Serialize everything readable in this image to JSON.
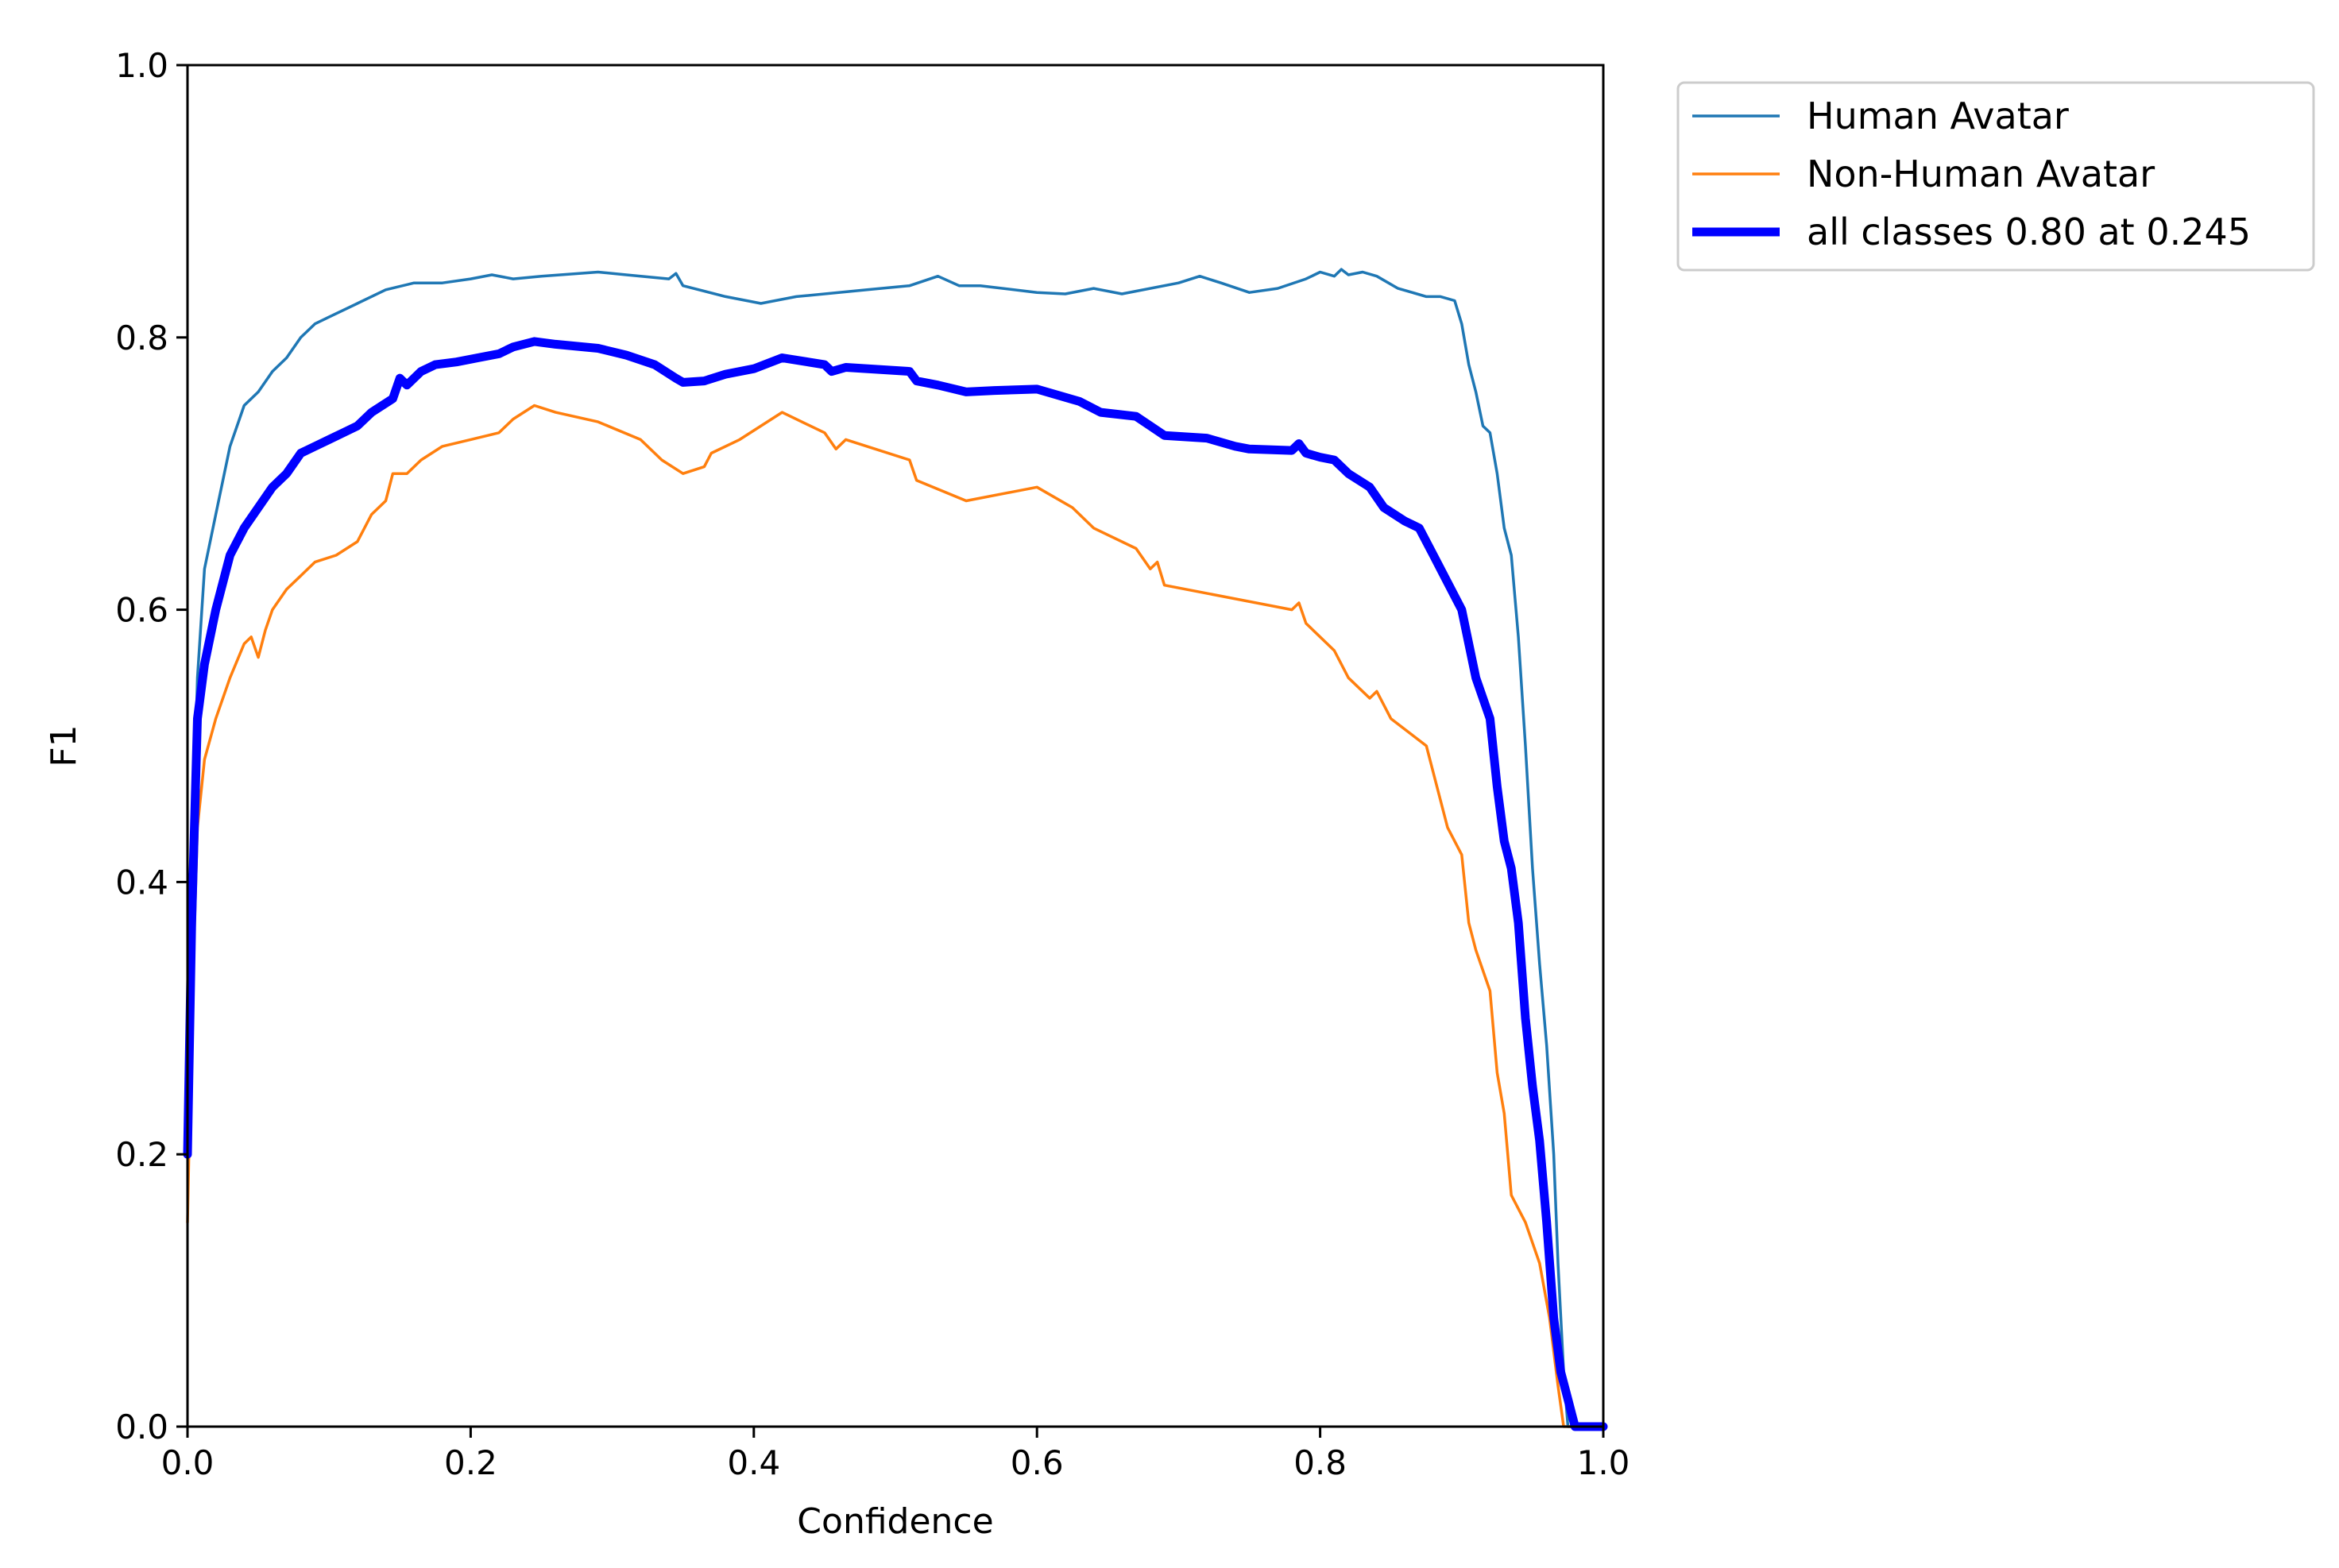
{
  "chart_data": {
    "type": "line",
    "title": "",
    "xlabel": "Confidence",
    "ylabel": "F1",
    "xlim": [
      0.0,
      1.0
    ],
    "ylim": [
      0.0,
      1.0
    ],
    "xticks": [
      "0.0",
      "0.2",
      "0.4",
      "0.6",
      "0.8",
      "1.0"
    ],
    "yticks": [
      "0.0",
      "0.2",
      "0.4",
      "0.6",
      "0.8",
      "1.0"
    ],
    "grid": false,
    "legend_position": "outside-top-right",
    "series": [
      {
        "name": "Human Avatar",
        "color": "#1f77b4",
        "points": [
          [
            0.0,
            0.2
          ],
          [
            0.003,
            0.4
          ],
          [
            0.007,
            0.55
          ],
          [
            0.012,
            0.63
          ],
          [
            0.02,
            0.67
          ],
          [
            0.03,
            0.72
          ],
          [
            0.04,
            0.75
          ],
          [
            0.05,
            0.76
          ],
          [
            0.06,
            0.775
          ],
          [
            0.07,
            0.785
          ],
          [
            0.08,
            0.8
          ],
          [
            0.09,
            0.81
          ],
          [
            0.1,
            0.815
          ],
          [
            0.12,
            0.825
          ],
          [
            0.14,
            0.835
          ],
          [
            0.16,
            0.84
          ],
          [
            0.18,
            0.84
          ],
          [
            0.2,
            0.843
          ],
          [
            0.215,
            0.846
          ],
          [
            0.23,
            0.843
          ],
          [
            0.25,
            0.845
          ],
          [
            0.29,
            0.848
          ],
          [
            0.31,
            0.846
          ],
          [
            0.34,
            0.843
          ],
          [
            0.345,
            0.847
          ],
          [
            0.35,
            0.838
          ],
          [
            0.38,
            0.83
          ],
          [
            0.405,
            0.825
          ],
          [
            0.43,
            0.83
          ],
          [
            0.48,
            0.835
          ],
          [
            0.51,
            0.838
          ],
          [
            0.53,
            0.845
          ],
          [
            0.545,
            0.838
          ],
          [
            0.56,
            0.838
          ],
          [
            0.6,
            0.833
          ],
          [
            0.62,
            0.832
          ],
          [
            0.64,
            0.836
          ],
          [
            0.66,
            0.832
          ],
          [
            0.7,
            0.84
          ],
          [
            0.715,
            0.845
          ],
          [
            0.73,
            0.84
          ],
          [
            0.75,
            0.833
          ],
          [
            0.77,
            0.836
          ],
          [
            0.79,
            0.843
          ],
          [
            0.8,
            0.848
          ],
          [
            0.81,
            0.845
          ],
          [
            0.815,
            0.85
          ],
          [
            0.82,
            0.846
          ],
          [
            0.83,
            0.848
          ],
          [
            0.84,
            0.845
          ],
          [
            0.855,
            0.836
          ],
          [
            0.865,
            0.833
          ],
          [
            0.875,
            0.83
          ],
          [
            0.885,
            0.83
          ],
          [
            0.895,
            0.827
          ],
          [
            0.9,
            0.81
          ],
          [
            0.905,
            0.78
          ],
          [
            0.91,
            0.76
          ],
          [
            0.915,
            0.735
          ],
          [
            0.92,
            0.73
          ],
          [
            0.925,
            0.7
          ],
          [
            0.93,
            0.66
          ],
          [
            0.935,
            0.64
          ],
          [
            0.94,
            0.58
          ],
          [
            0.945,
            0.5
          ],
          [
            0.95,
            0.41
          ],
          [
            0.955,
            0.34
          ],
          [
            0.96,
            0.28
          ],
          [
            0.965,
            0.2
          ],
          [
            0.968,
            0.12
          ],
          [
            0.972,
            0.04
          ],
          [
            0.975,
            0.0
          ],
          [
            1.0,
            0.0
          ]
        ]
      },
      {
        "name": "Non-Human Avatar",
        "color": "#ff7f0e",
        "points": [
          [
            0.0,
            0.15
          ],
          [
            0.003,
            0.3
          ],
          [
            0.007,
            0.44
          ],
          [
            0.012,
            0.49
          ],
          [
            0.02,
            0.52
          ],
          [
            0.03,
            0.55
          ],
          [
            0.04,
            0.575
          ],
          [
            0.045,
            0.58
          ],
          [
            0.05,
            0.565
          ],
          [
            0.055,
            0.585
          ],
          [
            0.06,
            0.6
          ],
          [
            0.07,
            0.615
          ],
          [
            0.08,
            0.625
          ],
          [
            0.09,
            0.635
          ],
          [
            0.105,
            0.64
          ],
          [
            0.12,
            0.65
          ],
          [
            0.13,
            0.67
          ],
          [
            0.14,
            0.68
          ],
          [
            0.145,
            0.7
          ],
          [
            0.155,
            0.7
          ],
          [
            0.165,
            0.71
          ],
          [
            0.18,
            0.72
          ],
          [
            0.2,
            0.725
          ],
          [
            0.22,
            0.73
          ],
          [
            0.23,
            0.74
          ],
          [
            0.245,
            0.75
          ],
          [
            0.26,
            0.745
          ],
          [
            0.29,
            0.738
          ],
          [
            0.32,
            0.725
          ],
          [
            0.335,
            0.71
          ],
          [
            0.35,
            0.7
          ],
          [
            0.365,
            0.705
          ],
          [
            0.37,
            0.715
          ],
          [
            0.39,
            0.725
          ],
          [
            0.42,
            0.745
          ],
          [
            0.45,
            0.73
          ],
          [
            0.458,
            0.718
          ],
          [
            0.465,
            0.725
          ],
          [
            0.51,
            0.71
          ],
          [
            0.515,
            0.695
          ],
          [
            0.55,
            0.68
          ],
          [
            0.6,
            0.69
          ],
          [
            0.625,
            0.675
          ],
          [
            0.64,
            0.66
          ],
          [
            0.67,
            0.645
          ],
          [
            0.68,
            0.63
          ],
          [
            0.685,
            0.635
          ],
          [
            0.69,
            0.618
          ],
          [
            0.78,
            0.6
          ],
          [
            0.785,
            0.605
          ],
          [
            0.79,
            0.59
          ],
          [
            0.81,
            0.57
          ],
          [
            0.82,
            0.55
          ],
          [
            0.835,
            0.535
          ],
          [
            0.84,
            0.54
          ],
          [
            0.85,
            0.52
          ],
          [
            0.875,
            0.5
          ],
          [
            0.88,
            0.48
          ],
          [
            0.885,
            0.46
          ],
          [
            0.89,
            0.44
          ],
          [
            0.9,
            0.42
          ],
          [
            0.905,
            0.37
          ],
          [
            0.91,
            0.35
          ],
          [
            0.92,
            0.32
          ],
          [
            0.925,
            0.26
          ],
          [
            0.93,
            0.23
          ],
          [
            0.935,
            0.17
          ],
          [
            0.945,
            0.15
          ],
          [
            0.955,
            0.12
          ],
          [
            0.962,
            0.08
          ],
          [
            0.968,
            0.03
          ],
          [
            0.972,
            0.0
          ],
          [
            1.0,
            0.0
          ]
        ]
      },
      {
        "name": "all classes 0.80 at 0.245",
        "color": "#0000ff",
        "bold": true,
        "points": [
          [
            0.0,
            0.2
          ],
          [
            0.003,
            0.37
          ],
          [
            0.007,
            0.52
          ],
          [
            0.012,
            0.56
          ],
          [
            0.02,
            0.6
          ],
          [
            0.03,
            0.64
          ],
          [
            0.04,
            0.66
          ],
          [
            0.05,
            0.675
          ],
          [
            0.06,
            0.69
          ],
          [
            0.07,
            0.7
          ],
          [
            0.08,
            0.715
          ],
          [
            0.09,
            0.72
          ],
          [
            0.1,
            0.725
          ],
          [
            0.11,
            0.73
          ],
          [
            0.12,
            0.735
          ],
          [
            0.13,
            0.745
          ],
          [
            0.145,
            0.755
          ],
          [
            0.15,
            0.77
          ],
          [
            0.155,
            0.765
          ],
          [
            0.165,
            0.775
          ],
          [
            0.175,
            0.78
          ],
          [
            0.19,
            0.782
          ],
          [
            0.205,
            0.785
          ],
          [
            0.22,
            0.788
          ],
          [
            0.23,
            0.793
          ],
          [
            0.245,
            0.797
          ],
          [
            0.26,
            0.795
          ],
          [
            0.29,
            0.792
          ],
          [
            0.31,
            0.787
          ],
          [
            0.33,
            0.78
          ],
          [
            0.345,
            0.77
          ],
          [
            0.35,
            0.767
          ],
          [
            0.365,
            0.768
          ],
          [
            0.38,
            0.773
          ],
          [
            0.4,
            0.777
          ],
          [
            0.42,
            0.785
          ],
          [
            0.45,
            0.78
          ],
          [
            0.455,
            0.775
          ],
          [
            0.465,
            0.778
          ],
          [
            0.51,
            0.775
          ],
          [
            0.515,
            0.768
          ],
          [
            0.53,
            0.765
          ],
          [
            0.55,
            0.76
          ],
          [
            0.57,
            0.761
          ],
          [
            0.6,
            0.762
          ],
          [
            0.63,
            0.753
          ],
          [
            0.645,
            0.745
          ],
          [
            0.67,
            0.742
          ],
          [
            0.68,
            0.735
          ],
          [
            0.69,
            0.728
          ],
          [
            0.72,
            0.726
          ],
          [
            0.74,
            0.72
          ],
          [
            0.75,
            0.718
          ],
          [
            0.78,
            0.717
          ],
          [
            0.785,
            0.722
          ],
          [
            0.79,
            0.715
          ],
          [
            0.8,
            0.712
          ],
          [
            0.81,
            0.71
          ],
          [
            0.82,
            0.7
          ],
          [
            0.835,
            0.69
          ],
          [
            0.845,
            0.675
          ],
          [
            0.86,
            0.665
          ],
          [
            0.87,
            0.66
          ],
          [
            0.88,
            0.64
          ],
          [
            0.89,
            0.62
          ],
          [
            0.9,
            0.6
          ],
          [
            0.905,
            0.575
          ],
          [
            0.91,
            0.55
          ],
          [
            0.92,
            0.52
          ],
          [
            0.925,
            0.47
          ],
          [
            0.93,
            0.43
          ],
          [
            0.935,
            0.41
          ],
          [
            0.94,
            0.37
          ],
          [
            0.945,
            0.3
          ],
          [
            0.95,
            0.25
          ],
          [
            0.955,
            0.21
          ],
          [
            0.96,
            0.15
          ],
          [
            0.965,
            0.08
          ],
          [
            0.97,
            0.04
          ],
          [
            0.975,
            0.02
          ],
          [
            0.98,
            0.0
          ],
          [
            1.0,
            0.0
          ]
        ]
      }
    ]
  }
}
